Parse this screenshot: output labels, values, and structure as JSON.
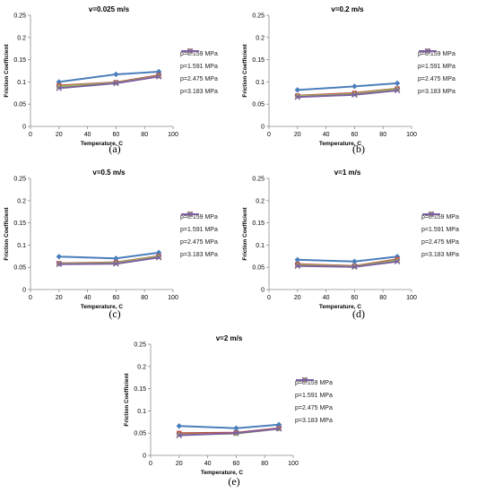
{
  "chart_data": [
    {
      "id": "a",
      "caption": "(a)",
      "type": "line",
      "title": "v=0.025 m/s",
      "xlabel": "Temperature, C",
      "ylabel": "Friction Coefficient",
      "xlim": [
        0,
        100
      ],
      "ylim": [
        0,
        0.25
      ],
      "xticks": [
        "0",
        "20",
        "40",
        "60",
        "80",
        "100"
      ],
      "yticks": [
        "0",
        "0.05",
        "0.1",
        "0.15",
        "0.2",
        "0.25"
      ],
      "x": [
        20,
        60,
        90
      ],
      "grid": false,
      "legend": "right",
      "series": [
        {
          "name": "p=0.159 MPa",
          "color": "#4a7ebb",
          "marker": "diamond",
          "values": [
            0.1,
            0.117,
            0.123
          ]
        },
        {
          "name": "p=1.591 MPa",
          "color": "#be4b48",
          "marker": "square",
          "values": [
            0.092,
            0.099,
            0.115
          ]
        },
        {
          "name": "p=2.475 MPa",
          "color": "#98b954",
          "marker": "triangle",
          "values": [
            0.09,
            0.098,
            0.113
          ]
        },
        {
          "name": "p=3.183 MPa",
          "color": "#7d60a0",
          "marker": "x",
          "values": [
            0.086,
            0.097,
            0.112
          ]
        }
      ]
    },
    {
      "id": "b",
      "caption": "(b)",
      "type": "line",
      "title": "v=0.2 m/s",
      "xlabel": "Temperature, C",
      "ylabel": "Friction Coefficient",
      "xlim": [
        0,
        100
      ],
      "ylim": [
        0,
        0.25
      ],
      "xticks": [
        "0",
        "20",
        "40",
        "60",
        "80",
        "100"
      ],
      "yticks": [
        "0",
        "0.05",
        "0.1",
        "0.15",
        "0.2",
        "0.25"
      ],
      "x": [
        20,
        60,
        90
      ],
      "grid": false,
      "legend": "right",
      "series": [
        {
          "name": "p=0.159 MPa",
          "color": "#4a7ebb",
          "marker": "diamond",
          "values": [
            0.082,
            0.09,
            0.097
          ]
        },
        {
          "name": "p=1.591 MPa",
          "color": "#be4b48",
          "marker": "square",
          "values": [
            0.069,
            0.075,
            0.085
          ]
        },
        {
          "name": "p=2.475 MPa",
          "color": "#98b954",
          "marker": "triangle",
          "values": [
            0.068,
            0.073,
            0.084
          ]
        },
        {
          "name": "p=3.183 MPa",
          "color": "#7d60a0",
          "marker": "x",
          "values": [
            0.066,
            0.071,
            0.081
          ]
        }
      ]
    },
    {
      "id": "c",
      "caption": "(c)",
      "type": "line",
      "title": "v=0.5 m/s",
      "xlabel": "Temperature, C",
      "ylabel": "Friction Coefficient",
      "xlim": [
        0,
        100
      ],
      "ylim": [
        0,
        0.25
      ],
      "xticks": [
        "0",
        "20",
        "40",
        "60",
        "80",
        "100"
      ],
      "yticks": [
        "0",
        "0.05",
        "0.1",
        "0.15",
        "0.2",
        "0.25"
      ],
      "x": [
        20,
        60,
        90
      ],
      "grid": false,
      "legend": "right",
      "series": [
        {
          "name": "p=0.159 MPa",
          "color": "#4a7ebb",
          "marker": "diamond",
          "values": [
            0.074,
            0.07,
            0.083
          ]
        },
        {
          "name": "p=1.591 MPa",
          "color": "#be4b48",
          "marker": "square",
          "values": [
            0.059,
            0.061,
            0.075
          ]
        },
        {
          "name": "p=2.475 MPa",
          "color": "#98b954",
          "marker": "triangle",
          "values": [
            0.058,
            0.06,
            0.074
          ]
        },
        {
          "name": "p=3.183 MPa",
          "color": "#7d60a0",
          "marker": "x",
          "values": [
            0.057,
            0.058,
            0.072
          ]
        }
      ]
    },
    {
      "id": "d",
      "caption": "(d)",
      "type": "line",
      "title": "v=1 m/s",
      "xlabel": "Temperature, C",
      "ylabel": "Friction Coefficient",
      "xlim": [
        0,
        100
      ],
      "ylim": [
        0,
        0.25
      ],
      "xticks": [
        "0",
        "20",
        "40",
        "60",
        "80",
        "100"
      ],
      "yticks": [
        "0",
        "0.05",
        "0.1",
        "0.15",
        "0.2",
        "0.25"
      ],
      "x": [
        20,
        60,
        90
      ],
      "grid": false,
      "legend": "right",
      "series": [
        {
          "name": "p=0.159 MPa",
          "color": "#4a7ebb",
          "marker": "diamond",
          "values": [
            0.067,
            0.063,
            0.074
          ]
        },
        {
          "name": "p=1.591 MPa",
          "color": "#be4b48",
          "marker": "square",
          "values": [
            0.057,
            0.053,
            0.068
          ]
        },
        {
          "name": "p=2.475 MPa",
          "color": "#98b954",
          "marker": "triangle",
          "values": [
            0.055,
            0.052,
            0.066
          ]
        },
        {
          "name": "p=3.183 MPa",
          "color": "#7d60a0",
          "marker": "x",
          "values": [
            0.053,
            0.051,
            0.063
          ]
        }
      ]
    },
    {
      "id": "e",
      "caption": "(e)",
      "type": "line",
      "title": "v=2 m/s",
      "xlabel": "Temperature, C",
      "ylabel": "Friction Coefficient",
      "xlim": [
        0,
        100
      ],
      "ylim": [
        0,
        0.25
      ],
      "xticks": [
        "0",
        "20",
        "40",
        "60",
        "80",
        "100"
      ],
      "yticks": [
        "0",
        "0.05",
        "0.1",
        "0.15",
        "0.2",
        "0.25"
      ],
      "x": [
        20,
        60,
        90
      ],
      "grid": false,
      "legend": "right",
      "series": [
        {
          "name": "p=0.159 MPa",
          "color": "#4a7ebb",
          "marker": "diamond",
          "values": [
            0.066,
            0.061,
            0.069
          ]
        },
        {
          "name": "p=1.591 MPa",
          "color": "#be4b48",
          "marker": "square",
          "values": [
            0.05,
            0.051,
            0.061
          ]
        },
        {
          "name": "p=2.475 MPa",
          "color": "#98b954",
          "marker": "triangle",
          "values": [
            0.047,
            0.049,
            0.06
          ]
        },
        {
          "name": "p=3.183 MPa",
          "color": "#7d60a0",
          "marker": "x",
          "values": [
            0.045,
            0.05,
            0.06
          ]
        }
      ]
    }
  ]
}
